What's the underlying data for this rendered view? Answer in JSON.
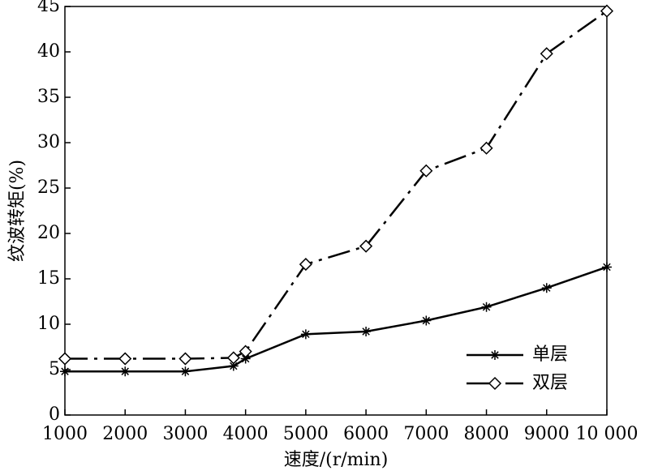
{
  "chart_data": {
    "type": "line",
    "xlabel": "速度/(r/min)",
    "ylabel": "纹波转矩(%)",
    "x": [
      1000,
      2000,
      3000,
      3800,
      4000,
      5000,
      6000,
      7000,
      8000,
      9000,
      10000
    ],
    "series": [
      {
        "name": "单层",
        "color": "#000000",
        "line_style": "solid",
        "marker": "star",
        "values": [
          4.8,
          4.8,
          4.8,
          5.4,
          6.2,
          8.9,
          9.2,
          10.4,
          11.9,
          14.0,
          16.3
        ]
      },
      {
        "name": "双层",
        "color": "#000000",
        "line_style": "dash-dot",
        "marker": "diamond",
        "values": [
          6.2,
          6.2,
          6.2,
          6.3,
          7.0,
          16.6,
          18.6,
          26.9,
          29.4,
          39.8,
          44.5
        ]
      }
    ],
    "xlim": [
      1000,
      10000
    ],
    "xticks": [
      1000,
      2000,
      3000,
      4000,
      5000,
      6000,
      7000,
      8000,
      9000,
      {
        "value": 10000,
        "label": "10 000"
      }
    ],
    "ylim": [
      0,
      45
    ],
    "yticks": [
      0,
      5,
      10,
      15,
      20,
      25,
      30,
      35,
      40,
      45
    ],
    "grid": false,
    "legend": "lower right"
  }
}
